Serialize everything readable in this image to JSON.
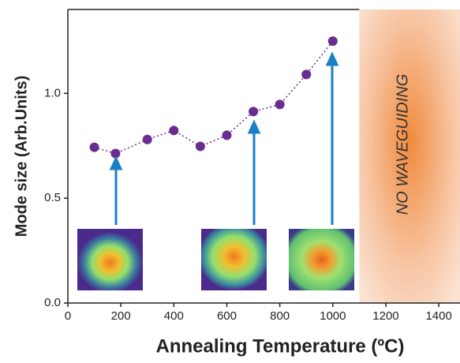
{
  "chart_data": {
    "type": "line",
    "x_label": "Annealing Temperature (ºC)",
    "y_label": "Mode size (Arb.Units)",
    "annotation": "NO WAVEGUIDING",
    "shaded_region": [
      1100,
      1480
    ],
    "x": [
      100,
      180,
      300,
      400,
      500,
      600,
      700,
      800,
      900,
      1000
    ],
    "series": [
      {
        "color": "#6a2c91",
        "values": [
          0.743,
          0.713,
          0.78,
          0.823,
          0.747,
          0.8,
          0.913,
          0.947,
          1.09,
          1.249
        ]
      }
    ],
    "xlim": [
      0,
      1480
    ],
    "xticks": [
      0,
      200,
      400,
      600,
      800,
      1000,
      1200,
      1400
    ],
    "ylim": [
      0,
      1.4
    ],
    "yticks": [
      {
        "value": 0,
        "label": "0.0"
      },
      {
        "value": 0.5,
        "label": "0.5"
      },
      {
        "value": 1,
        "label": "1.0"
      }
    ],
    "grid": false
  }
}
